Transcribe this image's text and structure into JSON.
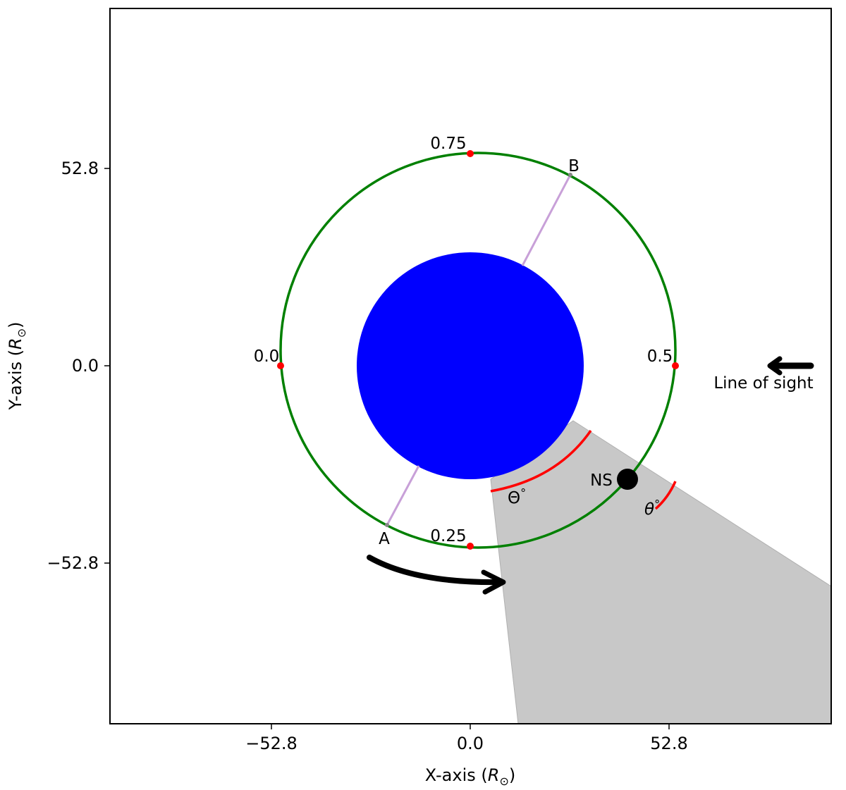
{
  "axes": {
    "xlabel_text": "X-axis (",
    "ylabel_text": "Y-axis (",
    "unit_symbol": "R",
    "unit_sub": "⊙",
    "unit_close": ")",
    "xticks": [
      "−52.8",
      "0.0",
      "52.8"
    ],
    "yticks": [
      "52.8",
      "0.0",
      "−52.8"
    ]
  },
  "orbit": {
    "color": "#008000",
    "phase_labels": [
      "0.0",
      "0.25",
      "0.5",
      "0.75"
    ],
    "phase_marker_color": "#ff0000"
  },
  "star": {
    "color": "#0000ff"
  },
  "points": {
    "a": "A",
    "b": "B",
    "ns": "NS"
  },
  "chord_color": "#c8a0d8",
  "shadow_color": "#c8c8c8",
  "angles": {
    "outer_symbol": "Θ",
    "outer_degree": "°",
    "inner_symbol": "θ",
    "inner_degree": "°",
    "arc_color": "#ff0000"
  },
  "line_of_sight": "Line of sight"
}
